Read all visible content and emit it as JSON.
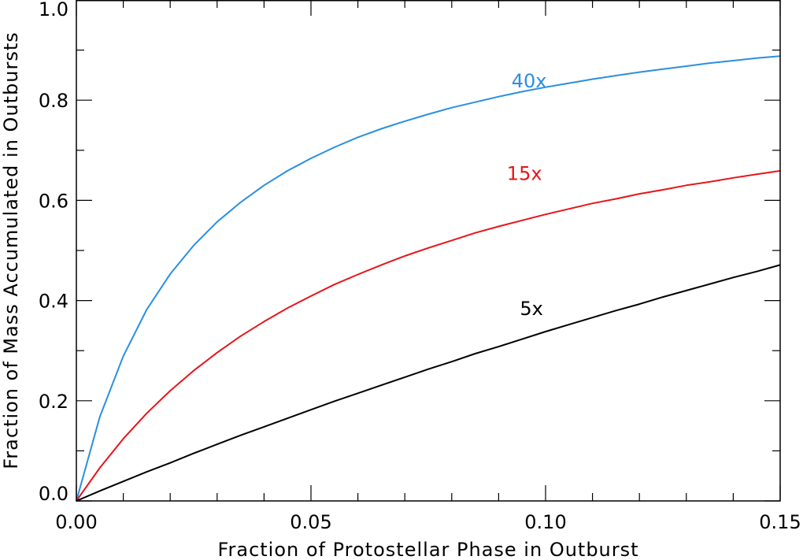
{
  "chart_data": {
    "type": "line",
    "title": "",
    "xlabel": "Fraction of Protostellar Phase in Outburst",
    "ylabel": "Fraction of Mass Accumulated in Outbursts",
    "xlim": [
      0.0,
      0.15
    ],
    "ylim": [
      0.0,
      1.0
    ],
    "xticks": [
      0.0,
      0.05,
      0.1,
      0.15
    ],
    "xtick_labels": [
      "0.00",
      "0.05",
      "0.10",
      "0.15"
    ],
    "yticks": [
      0.0,
      0.2,
      0.4,
      0.6,
      0.8,
      1.0
    ],
    "ytick_labels": [
      "0.0",
      "0.2",
      "0.4",
      "0.6",
      "0.8",
      "1.0"
    ],
    "grid": false,
    "legend": "inline labels",
    "x": [
      0.0,
      0.005,
      0.01,
      0.015,
      0.02,
      0.025,
      0.03,
      0.035,
      0.04,
      0.045,
      0.05,
      0.055,
      0.06,
      0.065,
      0.07,
      0.075,
      0.08,
      0.085,
      0.09,
      0.095,
      0.1,
      0.105,
      0.11,
      0.115,
      0.12,
      0.125,
      0.13,
      0.135,
      0.14,
      0.145,
      0.15
    ],
    "series": [
      {
        "name": "40x",
        "color": "#2a8fe0",
        "label_at": [
          0.0965,
          0.84
        ],
        "values": [
          0.0,
          0.168,
          0.289,
          0.382,
          0.453,
          0.51,
          0.557,
          0.596,
          0.63,
          0.659,
          0.684,
          0.706,
          0.726,
          0.743,
          0.758,
          0.772,
          0.785,
          0.796,
          0.807,
          0.817,
          0.826,
          0.834,
          0.842,
          0.849,
          0.856,
          0.862,
          0.868,
          0.874,
          0.879,
          0.884,
          0.888
        ]
      },
      {
        "name": "15x",
        "color": "#e8141a",
        "label_at": [
          0.0955,
          0.655
        ],
        "values": [
          0.0,
          0.066,
          0.124,
          0.175,
          0.22,
          0.26,
          0.296,
          0.329,
          0.358,
          0.385,
          0.409,
          0.432,
          0.452,
          0.471,
          0.489,
          0.505,
          0.52,
          0.535,
          0.548,
          0.56,
          0.572,
          0.583,
          0.594,
          0.603,
          0.613,
          0.621,
          0.63,
          0.637,
          0.645,
          0.652,
          0.659
        ]
      },
      {
        "name": "5x",
        "color": "#000000",
        "label_at": [
          0.097,
          0.385
        ],
        "values": [
          0.0,
          0.02,
          0.039,
          0.058,
          0.076,
          0.095,
          0.113,
          0.131,
          0.148,
          0.165,
          0.182,
          0.199,
          0.215,
          0.231,
          0.247,
          0.263,
          0.278,
          0.294,
          0.308,
          0.323,
          0.338,
          0.352,
          0.366,
          0.38,
          0.393,
          0.407,
          0.42,
          0.433,
          0.446,
          0.458,
          0.471
        ]
      }
    ]
  }
}
